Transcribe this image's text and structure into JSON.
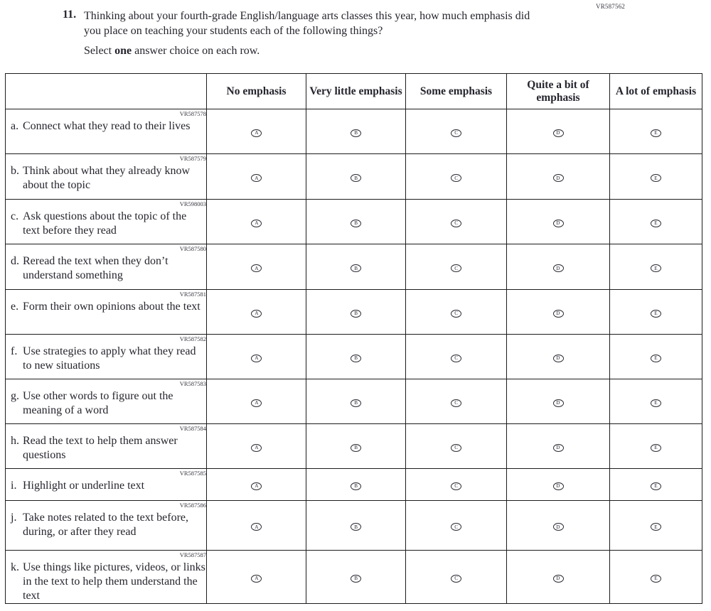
{
  "page_code": "VR587562",
  "question": {
    "number": "11.",
    "text": "Thinking about your fourth-grade English/language arts classes this year, how much emphasis did you place on teaching your students each of the following things?",
    "instruction_prefix": "Select ",
    "instruction_bold": "one",
    "instruction_suffix": " answer choice on each row."
  },
  "table": {
    "column_headers": [
      "No emphasis",
      "Very little emphasis",
      "Some emphasis",
      "Quite a bit of emphasis",
      "A lot of emphasis"
    ],
    "bubble_letters": [
      "A",
      "B",
      "C",
      "D",
      "E"
    ],
    "rows": [
      {
        "letter": "a.",
        "code": "VR587578",
        "text": "Connect what they read to their lives"
      },
      {
        "letter": "b.",
        "code": "VR587579",
        "text": "Think about what they already know about the topic"
      },
      {
        "letter": "c.",
        "code": "VR598003",
        "text": "Ask questions about the topic of the text before they read"
      },
      {
        "letter": "d.",
        "code": "VR587580",
        "text": "Reread the text when they don’t understand something"
      },
      {
        "letter": "e.",
        "code": "VR587581",
        "text": "Form their own opinions about the text"
      },
      {
        "letter": "f.",
        "code": "VR587582",
        "text": "Use strategies to apply what they read to new situations"
      },
      {
        "letter": "g.",
        "code": "VR587583",
        "text": "Use other words to figure out the meaning of a word"
      },
      {
        "letter": "h.",
        "code": "VR587584",
        "text": "Read the text to help them answer questions"
      },
      {
        "letter": "i.",
        "code": "VR587585",
        "text": "Highlight or underline text"
      },
      {
        "letter": "j.",
        "code": "VR587586",
        "text": "Take notes related to the text before, during, or after they read"
      },
      {
        "letter": "k.",
        "code": "VR587587",
        "text": "Use things like pictures, videos, or links in the text to help them understand the text"
      }
    ]
  }
}
